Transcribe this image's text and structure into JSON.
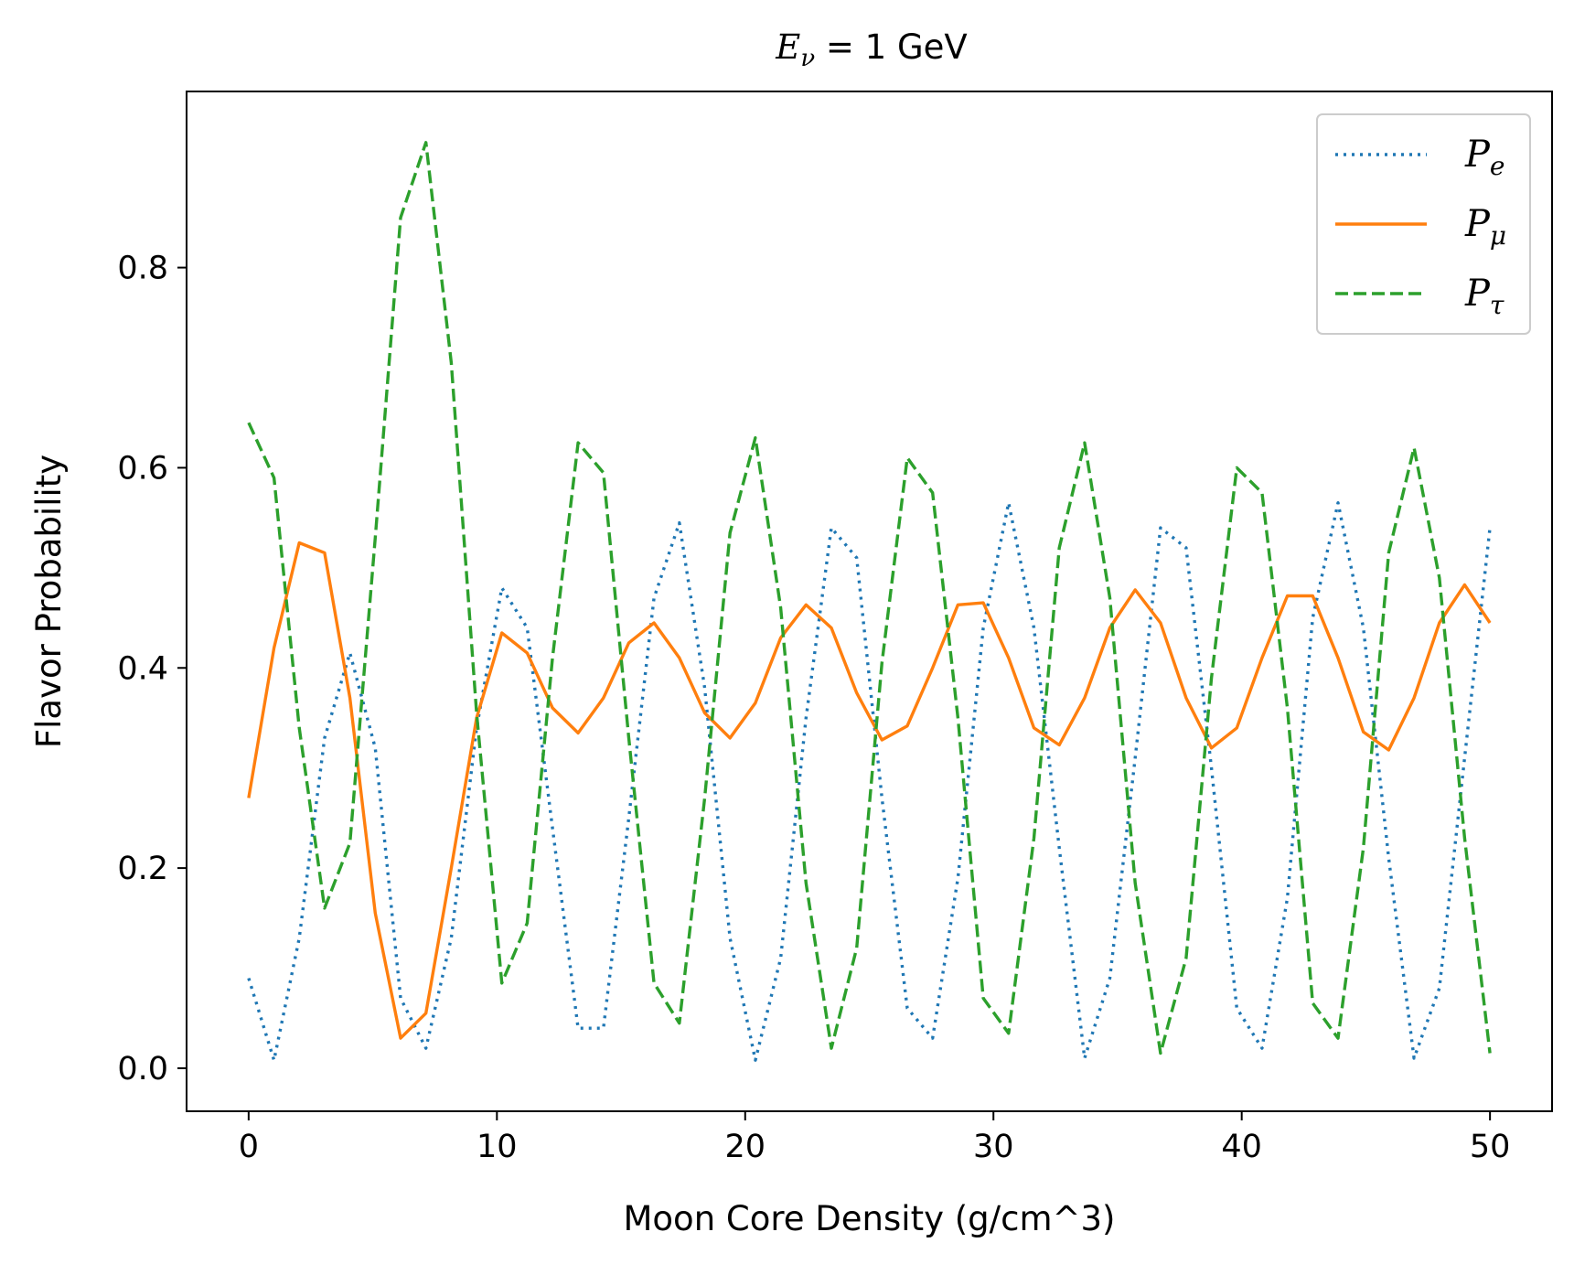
{
  "chart_data": {
    "type": "line",
    "title": "Eν = 1 GeV",
    "title_parts": {
      "symbol": "E",
      "subscript": "ν",
      "rest": " = 1 GeV"
    },
    "xlabel": "Moon Core Density (g/cm^3)",
    "ylabel": "Flavor Probability",
    "xlim": [
      -2.5,
      52.5
    ],
    "ylim": [
      -0.043,
      0.976
    ],
    "xticks": [
      0,
      10,
      20,
      30,
      40,
      50
    ],
    "xtick_labels": [
      "0",
      "10",
      "20",
      "30",
      "40",
      "50"
    ],
    "yticks": [
      0.0,
      0.2,
      0.4,
      0.6,
      0.8
    ],
    "ytick_labels": [
      "0.0",
      "0.2",
      "0.4",
      "0.6",
      "0.8"
    ],
    "grid": false,
    "legend_position": "top-right",
    "x": [
      0,
      1.02,
      2.04,
      3.06,
      4.08,
      5.1,
      6.12,
      7.14,
      8.16,
      9.18,
      10.2,
      11.22,
      12.24,
      13.27,
      14.29,
      15.31,
      16.33,
      17.35,
      18.37,
      19.39,
      20.41,
      21.43,
      22.45,
      23.47,
      24.49,
      25.51,
      26.53,
      27.55,
      28.57,
      29.59,
      30.61,
      31.63,
      32.65,
      33.67,
      34.69,
      35.71,
      36.73,
      37.76,
      38.78,
      39.8,
      40.82,
      41.84,
      42.86,
      43.88,
      44.9,
      45.92,
      46.94,
      47.96,
      48.98,
      50
    ],
    "series": [
      {
        "name": "Pe",
        "name_parts": {
          "symbol": "P",
          "subscript": "e"
        },
        "color": "#1f77b4",
        "style": "dotted",
        "values": [
          0.09,
          0.008,
          0.13,
          0.33,
          0.415,
          0.32,
          0.07,
          0.02,
          0.13,
          0.34,
          0.48,
          0.44,
          0.24,
          0.04,
          0.04,
          0.25,
          0.47,
          0.545,
          0.38,
          0.13,
          0.008,
          0.11,
          0.35,
          0.54,
          0.51,
          0.27,
          0.06,
          0.03,
          0.19,
          0.44,
          0.565,
          0.44,
          0.22,
          0.01,
          0.09,
          0.31,
          0.54,
          0.52,
          0.3,
          0.06,
          0.02,
          0.17,
          0.45,
          0.565,
          0.44,
          0.21,
          0.01,
          0.08,
          0.31,
          0.54
        ]
      },
      {
        "name": "Pμ",
        "name_parts": {
          "symbol": "P",
          "subscript": "μ"
        },
        "color": "#ff7f0e",
        "style": "solid",
        "values": [
          0.27,
          0.42,
          0.525,
          0.515,
          0.37,
          0.155,
          0.03,
          0.055,
          0.2,
          0.35,
          0.435,
          0.415,
          0.36,
          0.335,
          0.37,
          0.425,
          0.445,
          0.41,
          0.355,
          0.33,
          0.365,
          0.43,
          0.463,
          0.44,
          0.375,
          0.328,
          0.342,
          0.4,
          0.463,
          0.465,
          0.41,
          0.34,
          0.323,
          0.37,
          0.44,
          0.478,
          0.445,
          0.37,
          0.32,
          0.34,
          0.41,
          0.472,
          0.472,
          0.41,
          0.336,
          0.318,
          0.37,
          0.445,
          0.483,
          0.445
        ]
      },
      {
        "name": "Pτ",
        "name_parts": {
          "symbol": "P",
          "subscript": "τ"
        },
        "color": "#2ca02c",
        "style": "dashed",
        "values": [
          0.645,
          0.59,
          0.34,
          0.16,
          0.225,
          0.53,
          0.85,
          0.925,
          0.705,
          0.355,
          0.085,
          0.145,
          0.41,
          0.625,
          0.595,
          0.33,
          0.085,
          0.045,
          0.27,
          0.535,
          0.63,
          0.46,
          0.185,
          0.02,
          0.12,
          0.405,
          0.61,
          0.575,
          0.35,
          0.07,
          0.035,
          0.23,
          0.52,
          0.625,
          0.47,
          0.185,
          0.015,
          0.11,
          0.39,
          0.6,
          0.575,
          0.36,
          0.065,
          0.03,
          0.22,
          0.515,
          0.62,
          0.49,
          0.23,
          0.015
        ]
      }
    ]
  }
}
